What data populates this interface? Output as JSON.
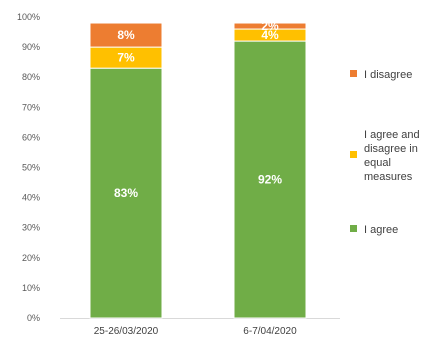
{
  "chart_data": {
    "type": "bar",
    "stacked": true,
    "categories": [
      "25-26/03/2020",
      "6-7/04/2020"
    ],
    "series": [
      {
        "name": "I agree",
        "values": [
          83,
          92
        ],
        "labels": [
          "83%",
          "92%"
        ],
        "color": "#70AD47"
      },
      {
        "name": "I agree and disagree in equal measures",
        "values": [
          7,
          4
        ],
        "labels": [
          "7%",
          "4%"
        ],
        "color": "#FFC000"
      },
      {
        "name": "I disagree",
        "values": [
          8,
          2
        ],
        "labels": [
          "8%",
          "2%"
        ],
        "color": "#ED7D31"
      }
    ],
    "legend": {
      "position": "right",
      "entries": [
        {
          "lines": [
            "I disagree"
          ],
          "color": "#ED7D31"
        },
        {
          "lines": [
            "I agree and",
            "disagree in",
            "equal",
            "measures"
          ],
          "color": "#FFC000"
        },
        {
          "lines": [
            "I agree"
          ],
          "color": "#70AD47"
        }
      ]
    },
    "yticks": [
      "0%",
      "10%",
      "20%",
      "30%",
      "40%",
      "50%",
      "60%",
      "70%",
      "80%",
      "90%",
      "100%"
    ],
    "ylim": [
      0,
      100
    ],
    "grid": false
  }
}
